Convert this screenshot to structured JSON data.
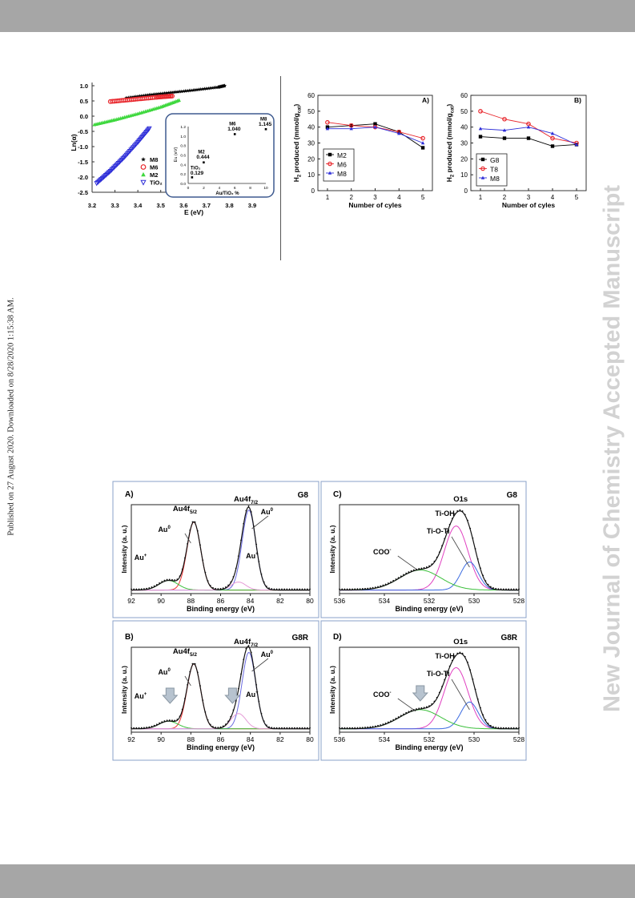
{
  "watermark": "New Journal of Chemistry Accepted Manuscript",
  "side_note": "Published on 27 August 2020. Downloaded on 8/28/2020 1:15:38 AM.",
  "colors": {
    "bars": "#a6a6a6",
    "black": "#000000",
    "red": "#e8262c",
    "blue": "#2d2dd8",
    "green": "#3fd83f",
    "watermark": "#d2d2d2"
  },
  "chart_data": [
    {
      "id": "ln-alpha",
      "type": "scatter",
      "xlabel": "E (eV)",
      "ylabel": "Ln(α)",
      "xlim": [
        3.2,
        3.9
      ],
      "ylim": [
        -2.5,
        1.0
      ],
      "xticks": [
        "3.2",
        "3.3",
        "3.4",
        "3.5",
        "3.6",
        "3.7",
        "3.8",
        "3.9"
      ],
      "yticks": [
        "-2.5",
        "-2.0",
        "-1.5",
        "-1.0",
        "-0.5",
        "0.0",
        "0.5",
        "1.0"
      ],
      "series": [
        {
          "name": "M8",
          "color": "#000000",
          "marker": "star",
          "x": [
            3.35,
            3.45,
            3.55,
            3.65,
            3.75,
            3.78
          ],
          "y": [
            0.6,
            0.7,
            0.78,
            0.86,
            0.95,
            1.0
          ]
        },
        {
          "name": "M6",
          "color": "#e8262c",
          "marker": "circle",
          "x": [
            3.28,
            3.38,
            3.48,
            3.55
          ],
          "y": [
            0.48,
            0.55,
            0.62,
            0.66
          ]
        },
        {
          "name": "M2",
          "color": "#3fd83f",
          "marker": "triangle",
          "x": [
            3.21,
            3.3,
            3.4,
            3.5,
            3.58
          ],
          "y": [
            -0.28,
            -0.12,
            0.08,
            0.3,
            0.52
          ]
        },
        {
          "name": "TiO₂",
          "color": "#2d2dd8",
          "marker": "triangle-down",
          "x": [
            3.22,
            3.28,
            3.34,
            3.4,
            3.45
          ],
          "y": [
            -2.2,
            -1.8,
            -1.35,
            -0.85,
            -0.4
          ]
        }
      ],
      "legend": "bottom-left",
      "inset": {
        "xlabel": "Au/TiO₂ %",
        "ylabel": "Eu (eV)",
        "xlim": [
          0,
          10
        ],
        "ylim": [
          0,
          1.2
        ],
        "xticks": [
          "0",
          "2",
          "4",
          "6",
          "8",
          "10"
        ],
        "yticks": [
          "0.0",
          "0.2",
          "0.4",
          "0.6",
          "0.8",
          "1.0",
          "1.2"
        ],
        "points": [
          {
            "name": "TiO₂",
            "value_label": "0.129",
            "x": 0.5,
            "y": 0.129
          },
          {
            "name": "M2",
            "value_label": "0.444",
            "x": 2,
            "y": 0.444
          },
          {
            "name": "M6",
            "value_label": "1.040",
            "x": 6,
            "y": 1.04
          },
          {
            "name": "M8",
            "value_label": "1.145",
            "x": 10,
            "y": 1.145
          }
        ]
      }
    },
    {
      "id": "h2-A",
      "type": "line",
      "panel_label": "A)",
      "xlabel": "Number of cyles",
      "ylabel_main": "H",
      "ylabel_sub1": "2",
      "ylabel_mid": " produced (mmol/g",
      "ylabel_sub2": "cat",
      "ylabel_end": ")",
      "x": [
        1,
        2,
        3,
        4,
        5
      ],
      "xlim": [
        0.6,
        5.4
      ],
      "ylim": [
        0,
        60
      ],
      "yticks": [
        "0",
        "10",
        "20",
        "30",
        "40",
        "50",
        "60"
      ],
      "xticks": [
        "1",
        "2",
        "3",
        "4",
        "5"
      ],
      "series": [
        {
          "name": "M2",
          "color": "#000000",
          "marker": "square",
          "values": [
            40,
            41,
            42,
            37,
            27
          ]
        },
        {
          "name": "M6",
          "color": "#e8262c",
          "marker": "circle",
          "values": [
            43,
            41,
            40,
            37,
            33
          ]
        },
        {
          "name": "M8",
          "color": "#2d2dd8",
          "marker": "triangle",
          "values": [
            39,
            39,
            40,
            36,
            30
          ]
        }
      ],
      "legend": "bottom-left"
    },
    {
      "id": "h2-B",
      "type": "line",
      "panel_label": "B)",
      "xlabel": "Number of cyles",
      "ylabel_main": "H",
      "ylabel_sub1": "2",
      "ylabel_mid": " produced (mmol/g",
      "ylabel_sub2": "cat",
      "ylabel_end": ")",
      "x": [
        1,
        2,
        3,
        4,
        5
      ],
      "xlim": [
        0.6,
        5.4
      ],
      "ylim": [
        0,
        60
      ],
      "yticks": [
        "0",
        "10",
        "20",
        "30",
        "40",
        "50",
        "60"
      ],
      "xticks": [
        "1",
        "2",
        "3",
        "4",
        "5"
      ],
      "series": [
        {
          "name": "G8",
          "color": "#000000",
          "marker": "square",
          "values": [
            34,
            33,
            33,
            28,
            29
          ]
        },
        {
          "name": "T8",
          "color": "#e8262c",
          "marker": "circle",
          "values": [
            50,
            45,
            42,
            33,
            30
          ]
        },
        {
          "name": "M8",
          "color": "#2d2dd8",
          "marker": "triangle",
          "values": [
            39,
            38,
            40,
            36,
            29
          ]
        }
      ],
      "legend": "bottom-left"
    }
  ],
  "xps": {
    "xlabel": "Binding energy (eV)",
    "ylabel": "Intensity (a. u.)",
    "au_ticks": [
      "92",
      "90",
      "88",
      "86",
      "84",
      "82",
      "80"
    ],
    "o_ticks": [
      "536",
      "534",
      "532",
      "530",
      "528"
    ],
    "panels": [
      {
        "id": "A",
        "label": "A)",
        "sample": "G8",
        "kind": "au",
        "peak1_main": "Au4f",
        "peak1_sub": "5/2",
        "peak2_main": "Au4f",
        "peak2_sub": "7/2",
        "au0": "Au",
        "au0_sup": "0",
        "auplus": "Au",
        "auplus_sup": "+",
        "arrows": false
      },
      {
        "id": "B",
        "label": "B)",
        "sample": "G8R",
        "kind": "au",
        "peak1_main": "Au4f",
        "peak1_sub": "5/2",
        "peak2_main": "Au4f",
        "peak2_sub": "7/2",
        "au0": "Au",
        "au0_sup": "0",
        "auplus": "Au",
        "auplus_sup": "+",
        "arrows": true
      },
      {
        "id": "C",
        "label": "C)",
        "sample": "G8",
        "kind": "o",
        "o1s": "O1s",
        "tioh": "Ti-OH",
        "tioti": "Ti-O-Ti",
        "coo": "COO",
        "coo_sup": "-",
        "arrows": false
      },
      {
        "id": "D",
        "label": "D)",
        "sample": "G8R",
        "kind": "o",
        "o1s": "O1s",
        "tioh": "Ti-OH",
        "tioti": "Ti-O-Ti",
        "coo": "COO",
        "coo_sup": "-",
        "arrows": true
      }
    ]
  }
}
